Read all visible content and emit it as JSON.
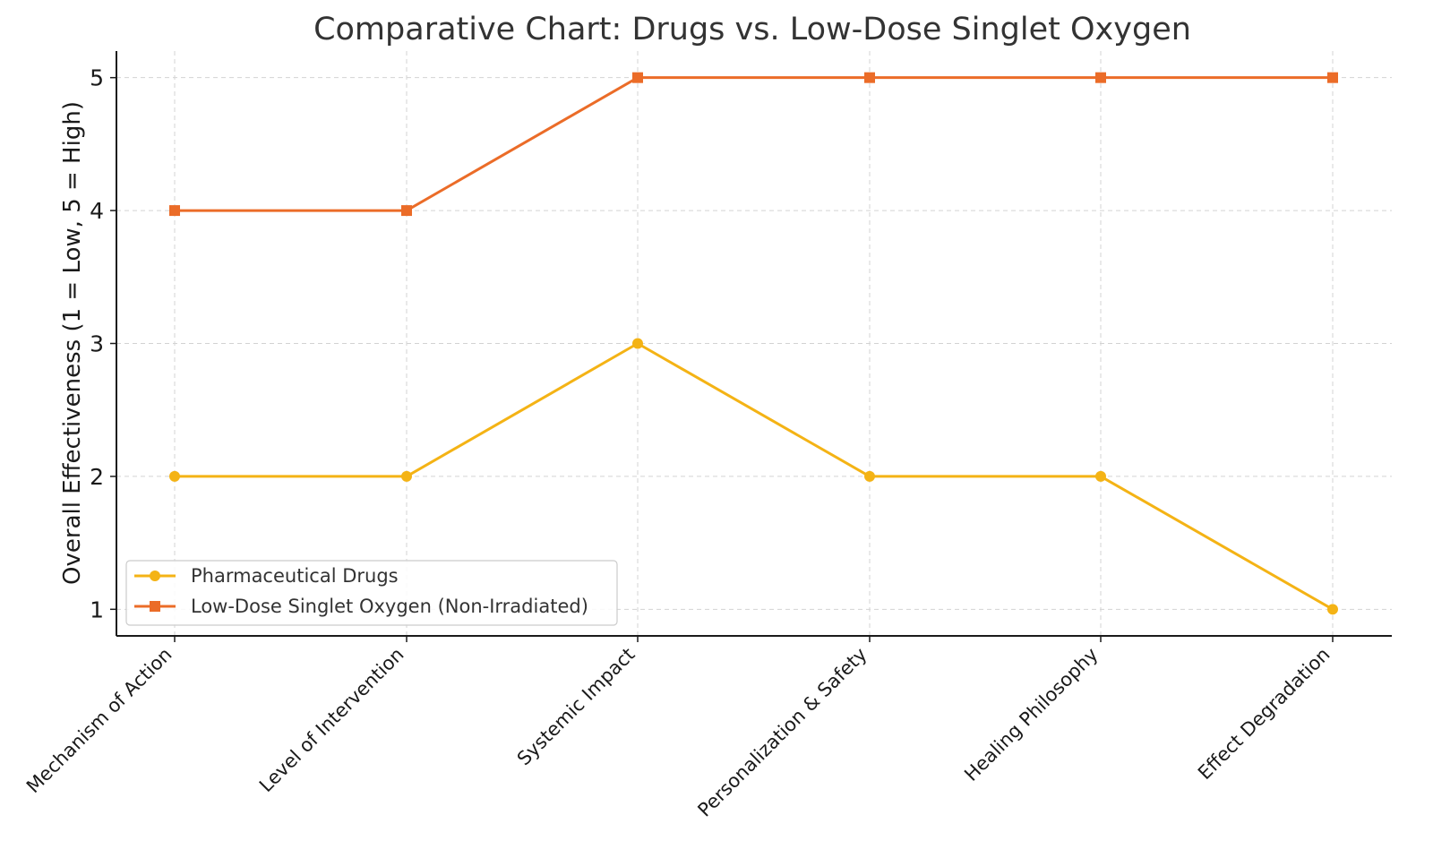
{
  "chart_data": {
    "type": "line",
    "title": "Comparative Chart: Drugs vs. Low-Dose Singlet Oxygen",
    "xlabel": "",
    "ylabel": "Overall Effectiveness (1 = Low, 5 = High)",
    "categories": [
      "Mechanism of Action",
      "Level of Intervention",
      "Systemic Impact",
      "Personalization & Safety",
      "Healing Philosophy",
      "Effect Degradation"
    ],
    "yticks": [
      1,
      2,
      3,
      4,
      5
    ],
    "ylim": [
      0.8,
      5.2
    ],
    "grid": true,
    "legend_position": "lower-left",
    "series": [
      {
        "name": "Pharmaceutical Drugs",
        "values": [
          2,
          2,
          3,
          2,
          2,
          1
        ],
        "color": "#f4b315",
        "marker": "circle"
      },
      {
        "name": "Low-Dose Singlet Oxygen (Non-Irradiated)",
        "values": [
          4,
          4,
          5,
          5,
          5,
          5
        ],
        "color": "#eb6c28",
        "marker": "square"
      }
    ]
  }
}
